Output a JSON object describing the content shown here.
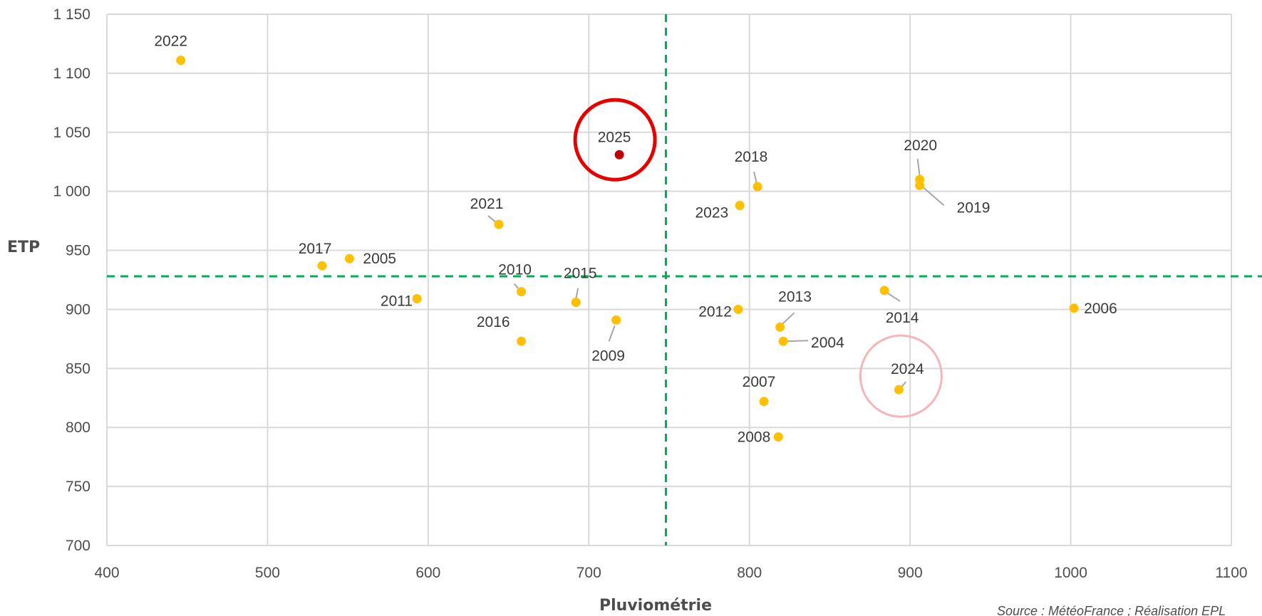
{
  "chart_data": {
    "type": "scatter",
    "xlabel": "Pluviométrie",
    "ylabel": "ETP",
    "xlim": [
      400,
      1100
    ],
    "ylim": [
      700,
      1150
    ],
    "xticks": [
      400,
      500,
      600,
      700,
      800,
      900,
      1000,
      1100
    ],
    "yticks": [
      700,
      750,
      800,
      850,
      900,
      950,
      1000,
      1050,
      1100,
      1150
    ],
    "xtick_labels": [
      "400",
      "500",
      "600",
      "700",
      "800",
      "900",
      "1000",
      "1100"
    ],
    "ytick_labels": [
      "700",
      "750",
      "800",
      "850",
      "900",
      "950",
      "1 000",
      "1 050",
      "1 100",
      "1 150"
    ],
    "grid": true,
    "reference_lines": {
      "x": 748,
      "y": 928
    },
    "points": [
      {
        "label": "2022",
        "x": 446,
        "y": 1111
      },
      {
        "label": "2025",
        "x": 719,
        "y": 1031,
        "highlight": "current"
      },
      {
        "label": "2018",
        "x": 805,
        "y": 1004
      },
      {
        "label": "2020",
        "x": 906,
        "y": 1010
      },
      {
        "label": "2019",
        "x": 906,
        "y": 1005
      },
      {
        "label": "2023",
        "x": 794,
        "y": 988
      },
      {
        "label": "2021",
        "x": 644,
        "y": 972
      },
      {
        "label": "2017",
        "x": 534,
        "y": 937
      },
      {
        "label": "2005",
        "x": 551,
        "y": 943
      },
      {
        "label": "2010",
        "x": 658,
        "y": 915
      },
      {
        "label": "2015",
        "x": 692,
        "y": 906
      },
      {
        "label": "2011",
        "x": 593,
        "y": 909
      },
      {
        "label": "2016",
        "x": 658,
        "y": 873
      },
      {
        "label": "2009",
        "x": 717,
        "y": 891
      },
      {
        "label": "2012",
        "x": 793,
        "y": 900
      },
      {
        "label": "2013",
        "x": 819,
        "y": 885
      },
      {
        "label": "2004",
        "x": 821,
        "y": 873
      },
      {
        "label": "2014",
        "x": 884,
        "y": 916
      },
      {
        "label": "2006",
        "x": 1002,
        "y": 901
      },
      {
        "label": "2024",
        "x": 893,
        "y": 832,
        "highlight": "previous"
      },
      {
        "label": "2007",
        "x": 809,
        "y": 822
      },
      {
        "label": "2008",
        "x": 818,
        "y": 792
      }
    ],
    "colors": {
      "point": "#ffc000",
      "point_highlight": "#c00000",
      "reference_line": "#00b050",
      "grid": "#d9d9d9",
      "circle_current": "#e60000",
      "circle_previous": "#f4b6b6"
    },
    "source": "Source : MétéoFrance ; Réalisation EPL"
  }
}
